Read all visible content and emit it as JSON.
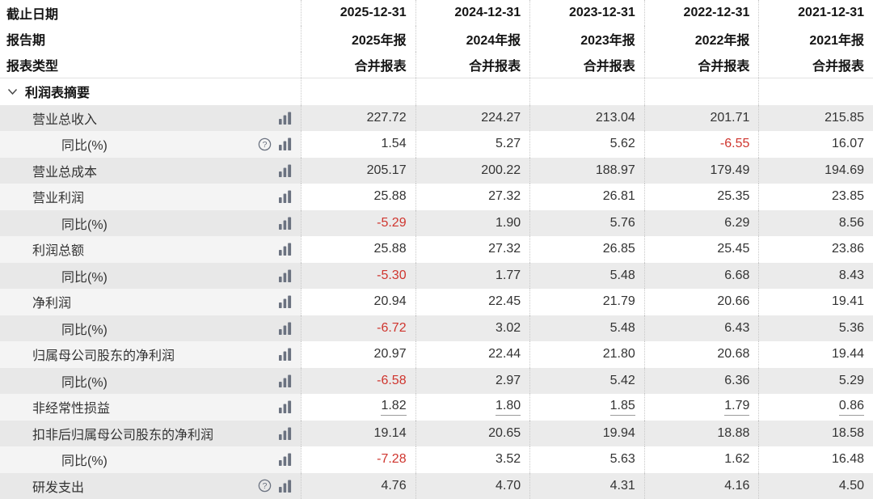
{
  "header": {
    "field_labels": [
      "截止日期",
      "报告期",
      "报表类型"
    ],
    "columns": [
      {
        "end_date": "2025-12-31",
        "report_period": "2025年报",
        "report_type": "合并报表"
      },
      {
        "end_date": "2024-12-31",
        "report_period": "2024年报",
        "report_type": "合并报表"
      },
      {
        "end_date": "2023-12-31",
        "report_period": "2023年报",
        "report_type": "合并报表"
      },
      {
        "end_date": "2022-12-31",
        "report_period": "2022年报",
        "report_type": "合并报表"
      },
      {
        "end_date": "2021-12-31",
        "report_period": "2021年报",
        "report_type": "合并报表"
      }
    ]
  },
  "rows": [
    {
      "type": "section",
      "label": "利润表摘要",
      "icons": [
        "chevron-down"
      ],
      "values": [
        "",
        "",
        "",
        "",
        ""
      ]
    },
    {
      "label": "营业总收入",
      "indent": 1,
      "icons": [
        "chart"
      ],
      "values": [
        "227.72",
        "224.27",
        "213.04",
        "201.71",
        "215.85"
      ]
    },
    {
      "label": "同比(%)",
      "indent": 2,
      "icons": [
        "help",
        "chart"
      ],
      "values": [
        "1.54",
        "5.27",
        "5.62",
        "-6.55",
        "16.07"
      ]
    },
    {
      "label": "营业总成本",
      "indent": 1,
      "icons": [
        "chart"
      ],
      "values": [
        "205.17",
        "200.22",
        "188.97",
        "179.49",
        "194.69"
      ]
    },
    {
      "label": "营业利润",
      "indent": 1,
      "icons": [
        "chart"
      ],
      "values": [
        "25.88",
        "27.32",
        "26.81",
        "25.35",
        "23.85"
      ]
    },
    {
      "label": "同比(%)",
      "indent": 2,
      "icons": [
        "chart"
      ],
      "values": [
        "-5.29",
        "1.90",
        "5.76",
        "6.29",
        "8.56"
      ]
    },
    {
      "label": "利润总额",
      "indent": 1,
      "icons": [
        "chart"
      ],
      "values": [
        "25.88",
        "27.32",
        "26.85",
        "25.45",
        "23.86"
      ]
    },
    {
      "label": "同比(%)",
      "indent": 2,
      "icons": [
        "chart"
      ],
      "values": [
        "-5.30",
        "1.77",
        "5.48",
        "6.68",
        "8.43"
      ]
    },
    {
      "label": "净利润",
      "indent": 1,
      "icons": [
        "chart"
      ],
      "values": [
        "20.94",
        "22.45",
        "21.79",
        "20.66",
        "19.41"
      ]
    },
    {
      "label": "同比(%)",
      "indent": 2,
      "icons": [
        "chart"
      ],
      "values": [
        "-6.72",
        "3.02",
        "5.48",
        "6.43",
        "5.36"
      ]
    },
    {
      "label": "归属母公司股东的净利润",
      "indent": 1,
      "icons": [
        "chart"
      ],
      "values": [
        "20.97",
        "22.44",
        "21.80",
        "20.68",
        "19.44"
      ]
    },
    {
      "label": "同比(%)",
      "indent": 2,
      "icons": [
        "chart"
      ],
      "values": [
        "-6.58",
        "2.97",
        "5.42",
        "6.36",
        "5.29"
      ]
    },
    {
      "label": "非经常性损益",
      "indent": 1,
      "icons": [
        "chart"
      ],
      "underline": true,
      "values": [
        "1.82",
        "1.80",
        "1.85",
        "1.79",
        "0.86"
      ]
    },
    {
      "label": "扣非后归属母公司股东的净利润",
      "indent": 1,
      "icons": [
        "chart"
      ],
      "values": [
        "19.14",
        "20.65",
        "19.94",
        "18.88",
        "18.58"
      ]
    },
    {
      "label": "同比(%)",
      "indent": 2,
      "icons": [
        "chart"
      ],
      "values": [
        "-7.28",
        "3.52",
        "5.63",
        "1.62",
        "16.48"
      ]
    },
    {
      "label": "研发支出",
      "indent": 1,
      "icons": [
        "help",
        "chart"
      ],
      "values": [
        "4.76",
        "4.70",
        "4.31",
        "4.16",
        "4.50"
      ]
    }
  ],
  "colors": {
    "negative": "#cf352e",
    "icon_gray": "#6b7280",
    "chevron_gray": "#4a4a4a",
    "stripe_dark": "#ebebeb",
    "stripe_label_dark": "#e8e8e8",
    "stripe_label_light": "#f4f4f4",
    "divider_dotted": "#c8c8c8"
  },
  "icon_names": [
    "chart-icon",
    "help-icon",
    "chevron-down-icon"
  ]
}
